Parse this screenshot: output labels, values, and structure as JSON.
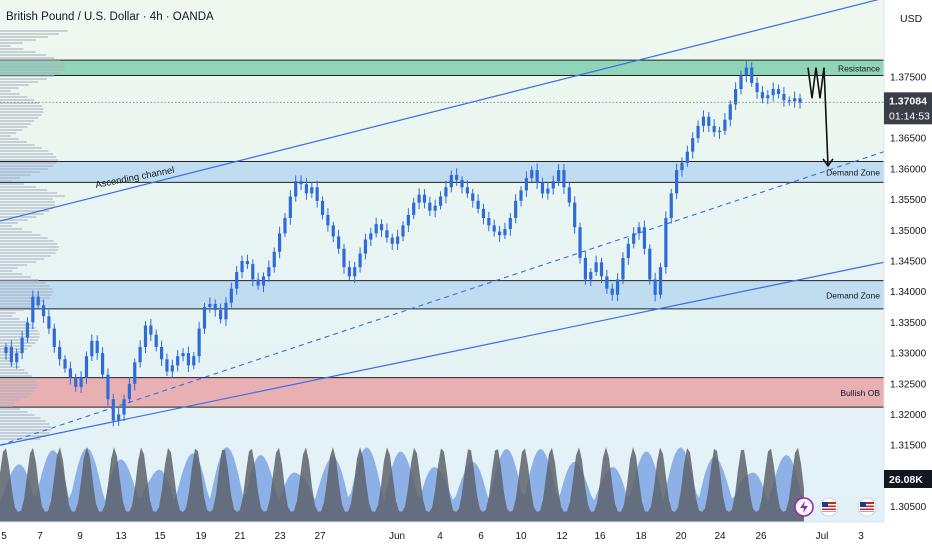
{
  "header": {
    "symbol_title": "British Pound / U.S. Dollar · 4h · OANDA",
    "currency": "USD"
  },
  "colors": {
    "background_top": "#eef8ee",
    "background_bottom": "#e2f1f8",
    "resistance_zone": "#7fcfae",
    "demand_zone": "#b9d7f0",
    "bullish_ob_zone": "#eaa3a8",
    "channel_line": "#3a6ee8",
    "candle": "#2f6bd8",
    "volume_light": "#7ea6e4",
    "volume_dark": "#5e636b",
    "volume_profile": "#aab0c0",
    "price_label_bg": "#3a3f47",
    "projection_arrow": "#111111"
  },
  "annotations": {
    "resistance": "Resistance",
    "demand_zone_upper": "Demand Zone",
    "demand_zone_lower": "Demand Zone",
    "bullish_ob": "Bullish OB",
    "ascending_channel": "Ascending channel"
  },
  "last_price": {
    "value": "1.37084",
    "countdown": "01:14:53"
  },
  "volume_label": "26.08K",
  "bottom_icons": [
    "lightning-icon",
    "us-flag-icon",
    "us-flag-icon"
  ],
  "chart_data": {
    "type": "candlestick",
    "interval": "4h",
    "y_axis": {
      "range": [
        1.3025,
        1.3875
      ],
      "tick_labels": [
        "1.37500",
        "1.37000",
        "1.36500",
        "1.36000",
        "1.35500",
        "1.35000",
        "1.34500",
        "1.34000",
        "1.33500",
        "1.33000",
        "1.32500",
        "1.32000",
        "1.31500",
        "1.31000",
        "1.30500"
      ]
    },
    "x_axis": {
      "tick_labels": [
        "5",
        "7",
        "9",
        "13",
        "15",
        "19",
        "21",
        "23",
        "27",
        "Jun",
        "4",
        "6",
        "10",
        "12",
        "16",
        "18",
        "20",
        "24",
        "26",
        "Jul",
        "3"
      ]
    },
    "zones": [
      {
        "label": "Resistance",
        "from": 1.3752,
        "to": 1.3777
      },
      {
        "label": "Demand Zone",
        "from": 1.3578,
        "to": 1.3612
      },
      {
        "label": "Demand Zone",
        "from": 1.3372,
        "to": 1.3418
      },
      {
        "label": "Bullish OB",
        "from": 1.3212,
        "to": 1.326
      }
    ],
    "ascending_channel": {
      "label": "Ascending channel",
      "upper": [
        [
          "May 5",
          1.3515
        ],
        [
          "Jul 3",
          1.3878
        ]
      ],
      "middle": [
        [
          "May 5",
          1.315
        ],
        [
          "Jul 3",
          1.3628
        ]
      ],
      "lower": [
        [
          "May 5",
          1.315
        ],
        [
          "Jul 3",
          1.3448
        ]
      ]
    },
    "projection": {
      "points": [
        1.3765,
        1.3715,
        1.3765,
        1.3715,
        1.3765,
        1.3605
      ]
    },
    "candles_close": [
      1.331,
      1.3285,
      1.33,
      1.3325,
      1.335,
      1.3392,
      1.3378,
      1.336,
      1.334,
      1.331,
      1.329,
      1.3275,
      1.326,
      1.3245,
      1.326,
      1.3295,
      1.332,
      1.33,
      1.3265,
      1.3225,
      1.319,
      1.32,
      1.3225,
      1.325,
      1.3285,
      1.331,
      1.3345,
      1.333,
      1.331,
      1.329,
      1.327,
      1.328,
      1.3295,
      1.33,
      1.328,
      1.3295,
      1.334,
      1.3375,
      1.338,
      1.337,
      1.3355,
      1.3382,
      1.3405,
      1.3432,
      1.345,
      1.3445,
      1.342,
      1.341,
      1.3425,
      1.344,
      1.3465,
      1.3495,
      1.352,
      1.3555,
      1.358,
      1.3575,
      1.356,
      1.357,
      1.3548,
      1.3525,
      1.3508,
      1.349,
      1.347,
      1.344,
      1.3425,
      1.344,
      1.3462,
      1.3485,
      1.3495,
      1.351,
      1.35,
      1.3488,
      1.3478,
      1.349,
      1.3508,
      1.3525,
      1.3545,
      1.3558,
      1.3545,
      1.3532,
      1.354,
      1.3555,
      1.357,
      1.359,
      1.3582,
      1.357,
      1.356,
      1.3548,
      1.3535,
      1.352,
      1.3508,
      1.3498,
      1.3492,
      1.3502,
      1.352,
      1.3548,
      1.3565,
      1.3585,
      1.3598,
      1.3578,
      1.356,
      1.3568,
      1.358,
      1.3598,
      1.357,
      1.3545,
      1.3505,
      1.3455,
      1.342,
      1.3432,
      1.3448,
      1.3425,
      1.3405,
      1.3395,
      1.342,
      1.3455,
      1.3478,
      1.3495,
      1.3505,
      1.347,
      1.342,
      1.3395,
      1.344,
      1.352,
      1.356,
      1.3598,
      1.361,
      1.3628,
      1.365,
      1.367,
      1.3685,
      1.367,
      1.366,
      1.3662,
      1.368,
      1.3705,
      1.373,
      1.3752,
      1.3765,
      1.374,
      1.3725,
      1.3715,
      1.372,
      1.373,
      1.3722,
      1.3712,
      1.371,
      1.3715,
      1.3708
    ]
  }
}
